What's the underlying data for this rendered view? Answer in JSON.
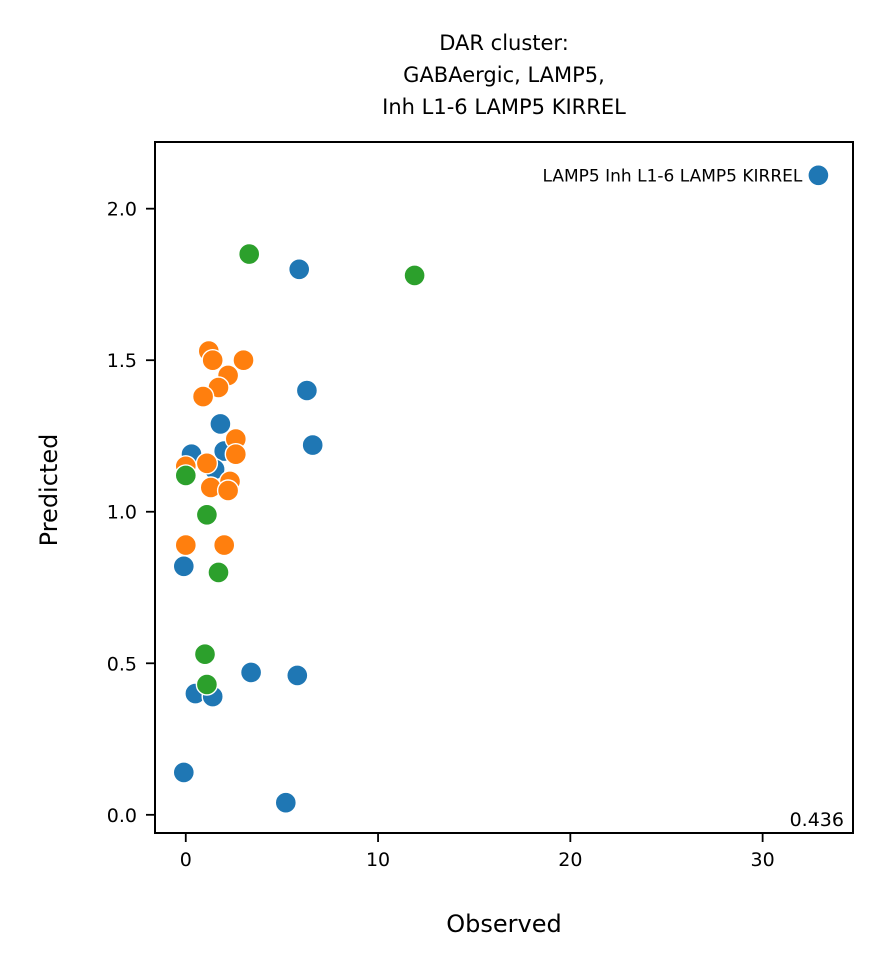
{
  "chart_data": {
    "type": "scatter",
    "title_lines": [
      "DAR cluster:",
      "GABAergic, LAMP5,",
      "Inh L1-6 LAMP5 KIRREL"
    ],
    "xlabel": "Observed",
    "ylabel": "Predicted",
    "xlim": [
      -1.6,
      34.7
    ],
    "ylim": [
      -0.06,
      2.22
    ],
    "xticks": [
      0,
      10,
      20,
      30
    ],
    "yticks": [
      0.0,
      0.5,
      1.0,
      1.5,
      2.0
    ],
    "xtick_labels": [
      "0",
      "10",
      "20",
      "30"
    ],
    "ytick_labels": [
      "0.0",
      "0.5",
      "1.0",
      "1.5",
      "2.0"
    ],
    "grid": false,
    "legend": "none",
    "corner_value": "0.436",
    "annotation": {
      "text": "LAMP5 Inh L1-6 LAMP5 KIRREL",
      "x": 32.9,
      "y": 2.11
    },
    "series": [
      {
        "color": "#1f77b4",
        "points": [
          [
            32.9,
            2.11
          ],
          [
            5.9,
            1.8
          ],
          [
            6.3,
            1.4
          ],
          [
            6.6,
            1.22
          ],
          [
            1.8,
            1.29
          ],
          [
            0.3,
            1.19
          ],
          [
            2.0,
            1.2
          ],
          [
            1.5,
            1.14
          ],
          [
            -0.1,
            0.82
          ],
          [
            3.4,
            0.47
          ],
          [
            5.8,
            0.46
          ],
          [
            0.5,
            0.4
          ],
          [
            1.4,
            0.39
          ],
          [
            -0.1,
            0.14
          ],
          [
            5.2,
            0.04
          ]
        ]
      },
      {
        "color": "#ff7f0e",
        "points": [
          [
            1.2,
            1.53
          ],
          [
            1.4,
            1.5
          ],
          [
            3.0,
            1.5
          ],
          [
            2.2,
            1.45
          ],
          [
            1.7,
            1.41
          ],
          [
            0.9,
            1.38
          ],
          [
            2.6,
            1.24
          ],
          [
            2.6,
            1.19
          ],
          [
            1.1,
            1.16
          ],
          [
            0.0,
            1.15
          ],
          [
            2.3,
            1.1
          ],
          [
            1.3,
            1.08
          ],
          [
            2.2,
            1.07
          ],
          [
            0.0,
            0.89
          ],
          [
            2.0,
            0.89
          ]
        ]
      },
      {
        "color": "#2ca02c",
        "points": [
          [
            3.3,
            1.85
          ],
          [
            11.9,
            1.78
          ],
          [
            0.0,
            1.12
          ],
          [
            1.1,
            0.99
          ],
          [
            1.7,
            0.8
          ],
          [
            1.0,
            0.53
          ],
          [
            1.1,
            0.43
          ]
        ]
      }
    ]
  }
}
